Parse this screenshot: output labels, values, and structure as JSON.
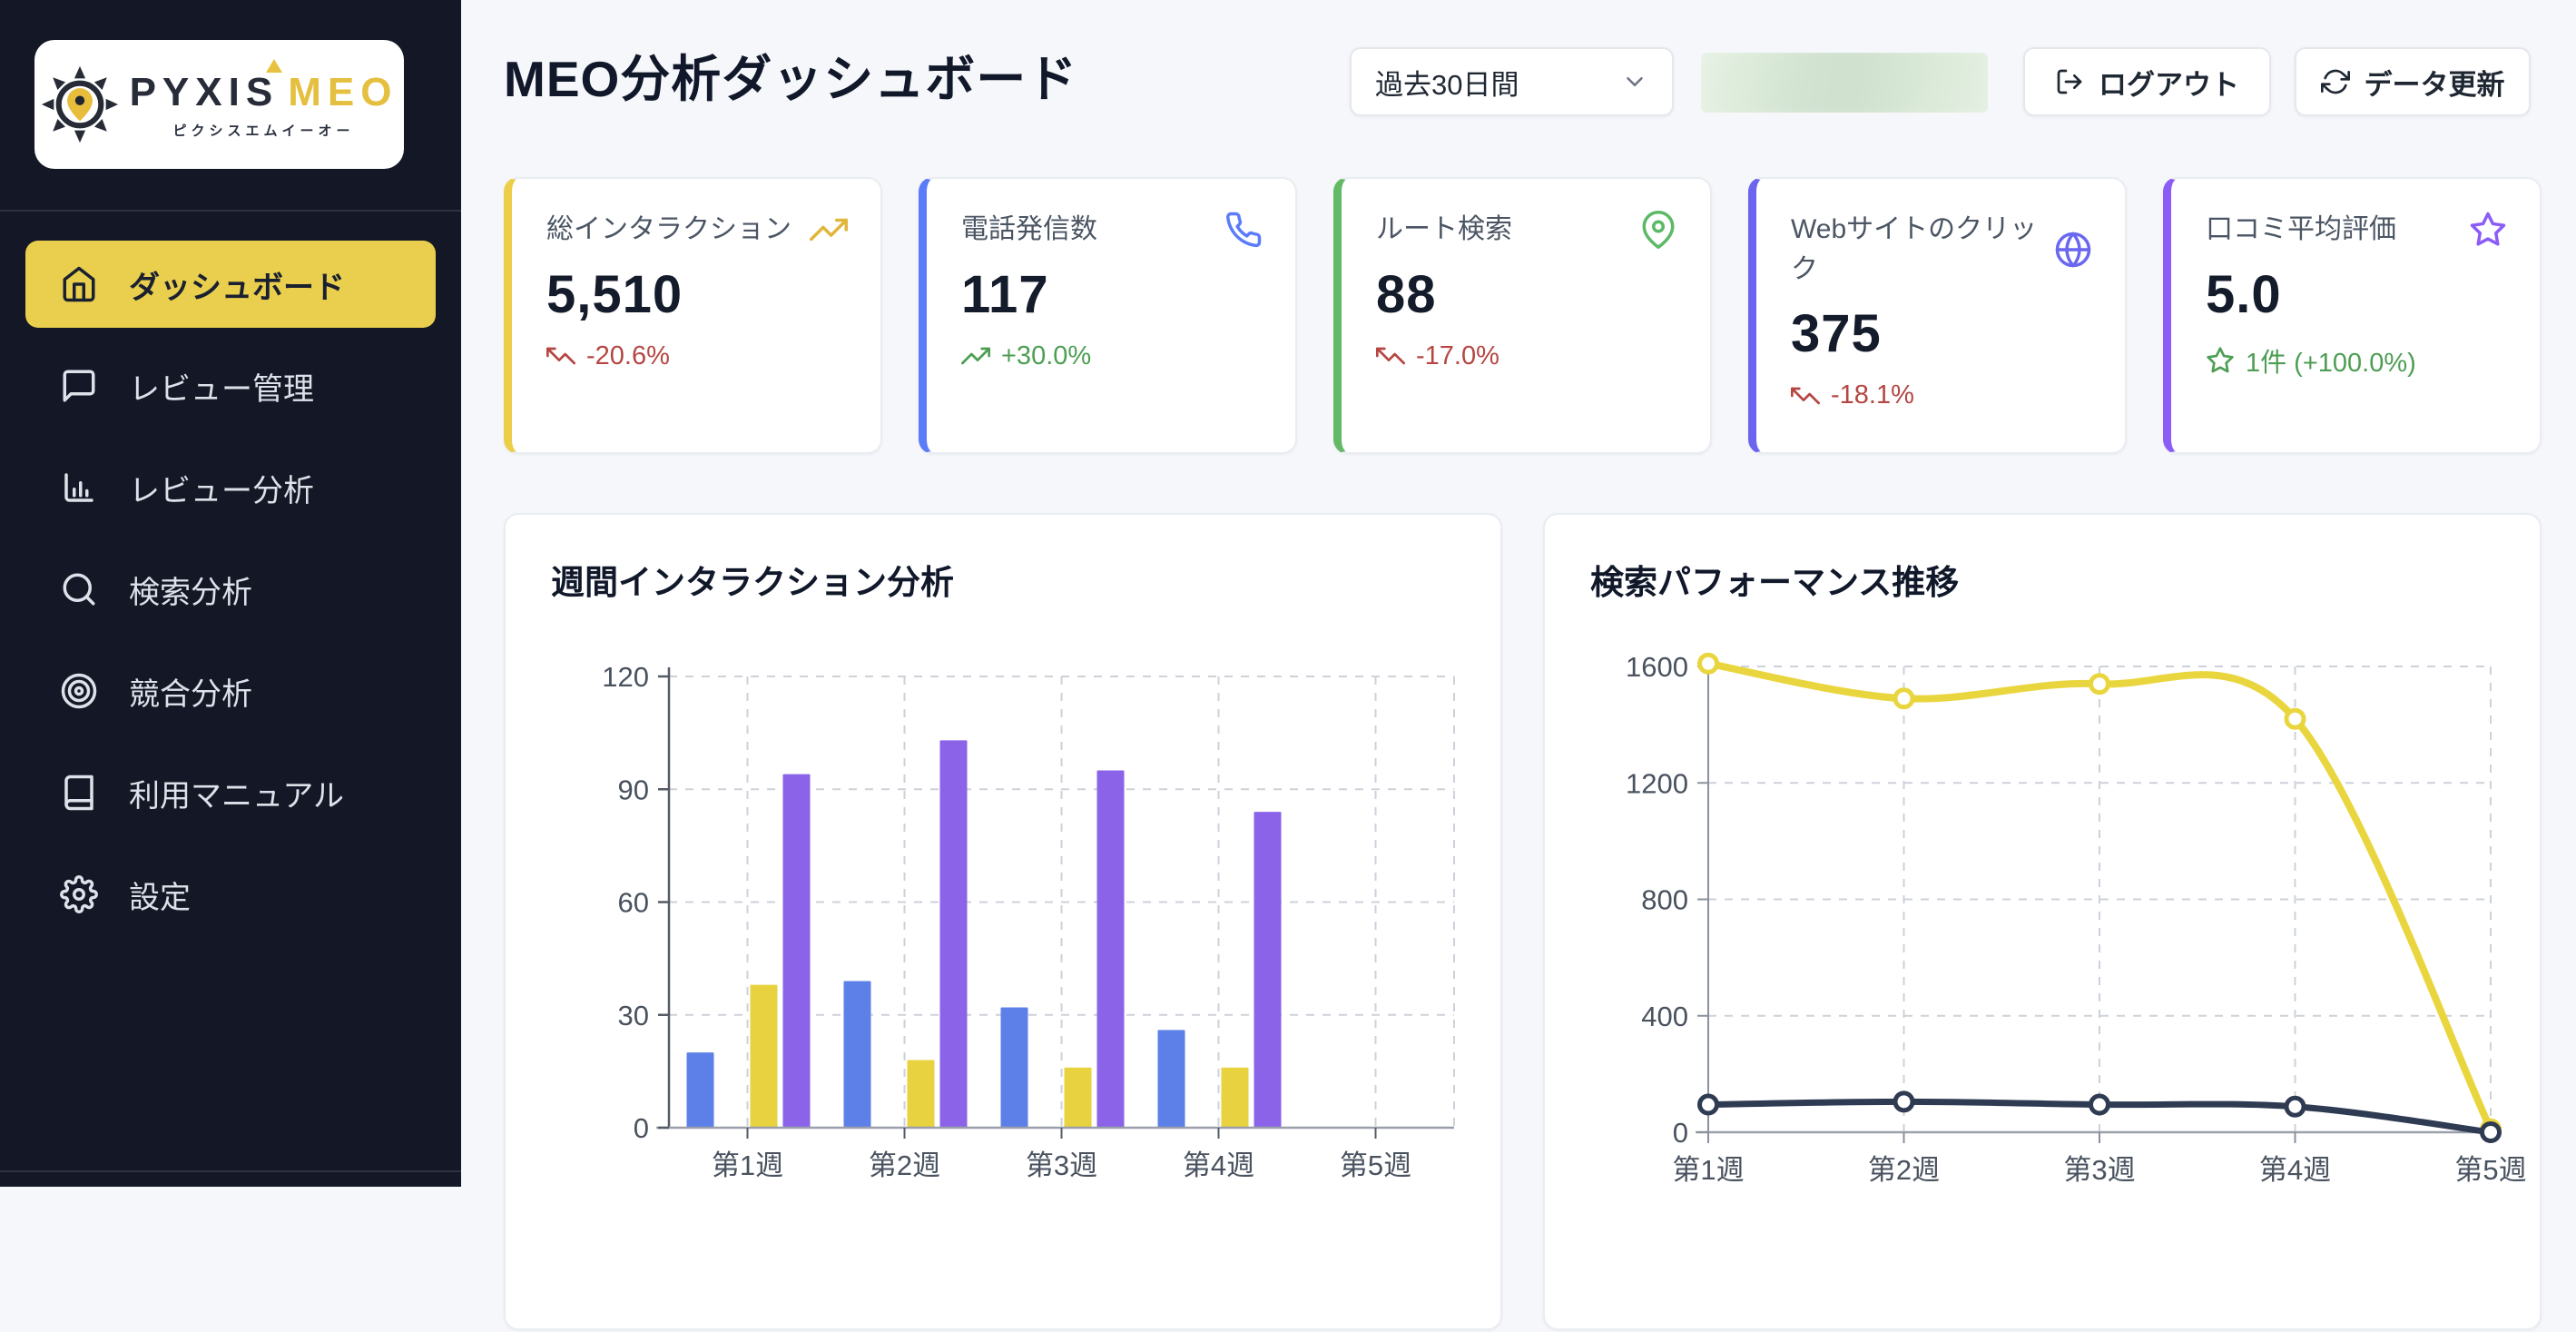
{
  "sidebar": {
    "brand": {
      "name_primary": "PYXIS",
      "name_accent": "MEO",
      "subtitle": "ピクシスエムイーオー"
    },
    "items": [
      {
        "id": "dashboard",
        "label": "ダッシュボード",
        "icon": "home",
        "active": true
      },
      {
        "id": "review-management",
        "label": "レビュー管理",
        "icon": "message-square",
        "active": false
      },
      {
        "id": "review-analysis",
        "label": "レビュー分析",
        "icon": "bar-chart",
        "active": false
      },
      {
        "id": "search-analysis",
        "label": "検索分析",
        "icon": "search",
        "active": false
      },
      {
        "id": "competitor-analysis",
        "label": "競合分析",
        "icon": "target",
        "active": false
      },
      {
        "id": "manual",
        "label": "利用マニュアル",
        "icon": "book",
        "active": false
      },
      {
        "id": "settings",
        "label": "設定",
        "icon": "settings",
        "active": false
      }
    ]
  },
  "header": {
    "title": "MEO分析ダッシュボード",
    "period_select": {
      "value": "過去30日間"
    },
    "logout_label": "ログアウト",
    "refresh_label": "データ更新"
  },
  "colors": {
    "accent_yellow": "#e9cf4d",
    "positive_green": "#4d9e53",
    "negative_red": "#b54642",
    "sidebar_bg": "#141826",
    "grid_gray": "#cdd1d9"
  },
  "stat_cards": [
    {
      "id": "total-interactions",
      "label": "総インタラクション",
      "icon": "trending-up",
      "icon_color": "#e0b63c",
      "accent": "#ecce49",
      "value": "5,510",
      "change": "-20.6%",
      "change_icon": "trending-down",
      "change_color": "#b54642"
    },
    {
      "id": "phone-calls",
      "label": "電話発信数",
      "icon": "phone",
      "icon_color": "#5b7cfa",
      "accent": "#5b7cfa",
      "value": "117",
      "change": "+30.0%",
      "change_icon": "trending-up",
      "change_color": "#4d9e53"
    },
    {
      "id": "route-searches",
      "label": "ルート検索",
      "icon": "map-pin",
      "icon_color": "#5cb966",
      "accent": "#63ba66",
      "value": "88",
      "change": "-17.0%",
      "change_icon": "trending-down",
      "change_color": "#b54642"
    },
    {
      "id": "website-clicks",
      "label": "Webサイトのクリック",
      "icon": "globe",
      "icon_color": "#6a67f0",
      "accent": "#6a64ee",
      "value": "375",
      "change": "-18.1%",
      "change_icon": "trending-down",
      "change_color": "#b54642"
    },
    {
      "id": "review-average-rating",
      "label": "口コミ平均評価",
      "icon": "star",
      "icon_color": "#8b5cf6",
      "accent": "#8b5cf6",
      "value": "5.0",
      "change": "1件 (+100.0%)",
      "change_icon": "star",
      "change_color": "#4d9e53"
    }
  ],
  "chart_data": [
    {
      "type": "bar",
      "title": "週間インタラクション分析",
      "categories": [
        "第1週",
        "第2週",
        "第3週",
        "第4週",
        "第5週"
      ],
      "series": [
        {
          "name": "series-1-blue",
          "color": "#5d80e8",
          "values": [
            20,
            39,
            32,
            26,
            0
          ]
        },
        {
          "name": "series-2-yellow",
          "color": "#e8d23f",
          "values": [
            38,
            18,
            16,
            16,
            0
          ]
        },
        {
          "name": "series-3-purple",
          "color": "#8a63e8",
          "values": [
            94,
            103,
            95,
            84,
            0
          ]
        }
      ],
      "ylim": [
        0,
        120
      ],
      "yticks": [
        0,
        30,
        60,
        90,
        120
      ],
      "grid": "dashed",
      "legend": "none-visible"
    },
    {
      "type": "line",
      "title": "検索パフォーマンス推移",
      "categories": [
        "第1週",
        "第2週",
        "第3週",
        "第4週",
        "第5週"
      ],
      "series": [
        {
          "name": "series-1-yellow",
          "color": "#e9d63f",
          "values": [
            1610,
            1490,
            1540,
            1420,
            10
          ]
        },
        {
          "name": "series-2-navy",
          "color": "#2f3b52",
          "values": [
            95,
            105,
            95,
            88,
            0
          ]
        }
      ],
      "ylim": [
        0,
        1600
      ],
      "yticks": [
        0,
        400,
        800,
        1200,
        1600
      ],
      "grid": "dashed",
      "legend": "none-visible"
    }
  ]
}
